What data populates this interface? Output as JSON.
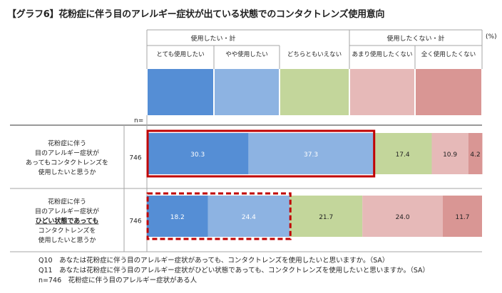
{
  "title": "【グラフ6】花粉症に伴う目のアレルギー症状が出ている状態でのコンタクトレンズ使用意向",
  "unit_label": "(%)",
  "n_header": "n=",
  "colors": {
    "series": [
      "#558ED5",
      "#8DB3E2",
      "#C3D69B",
      "#E6B9B8",
      "#D99694"
    ],
    "highlight_border": "#C00000",
    "table_line": "#A6A6A6",
    "header_line": "#333333"
  },
  "chart_data": {
    "type": "bar",
    "orientation": "horizontal",
    "stacked": true,
    "categories": [
      "花粉症に伴う目のアレルギー症状があってもコンタクトレンズを使用したいと思うか",
      "花粉症に伴う目のアレルギー症状がひどい状態であってもコンタクトレンズを使用したいと思うか"
    ],
    "category_lines": [
      [
        "花粉症に伴う",
        "目のアレルギー症状が",
        "あってもコンタクトレンズを",
        "使用したいと思うか"
      ],
      [
        "花粉症に伴う",
        "目のアレルギー症状が",
        "ひどい状態であっても",
        "コンタクトレンズを",
        "使用したいと思うか"
      ]
    ],
    "emphasized_line": {
      "row": 1,
      "line": 2
    },
    "n": [
      746,
      746
    ],
    "group_headers": [
      {
        "label": "使用したい・計"
      },
      {
        "label": "使用したくない・計"
      }
    ],
    "series": [
      {
        "name": "とても使用したい",
        "values": [
          30.3,
          18.2
        ]
      },
      {
        "name": "やや使用したい",
        "values": [
          37.3,
          24.4
        ]
      },
      {
        "name": "どちらともいえない",
        "values": [
          17.4,
          21.7
        ]
      },
      {
        "name": "あまり使用したくない",
        "values": [
          10.9,
          24.0
        ]
      },
      {
        "name": "全く使用したくない",
        "values": [
          4.2,
          11.7
        ]
      }
    ],
    "highlight": {
      "series": [
        0,
        1
      ],
      "rows": [
        0,
        1
      ],
      "styles": [
        "solid",
        "dashed"
      ]
    },
    "xlim": [
      0,
      100
    ],
    "legend": "top"
  },
  "notes": [
    "Q10　あなたは花粉症に伴う目のアレルギー症状があっても、コンタクトレンズを使用したいと思いますか。（SA）",
    "Q11　あなたは花粉症に伴う目のアレルギー症状がひどい状態であっても、コンタクトレンズを使用したいと思いますか。（SA）",
    "n=746　花粉症に伴う目のアレルギー症状がある人"
  ]
}
